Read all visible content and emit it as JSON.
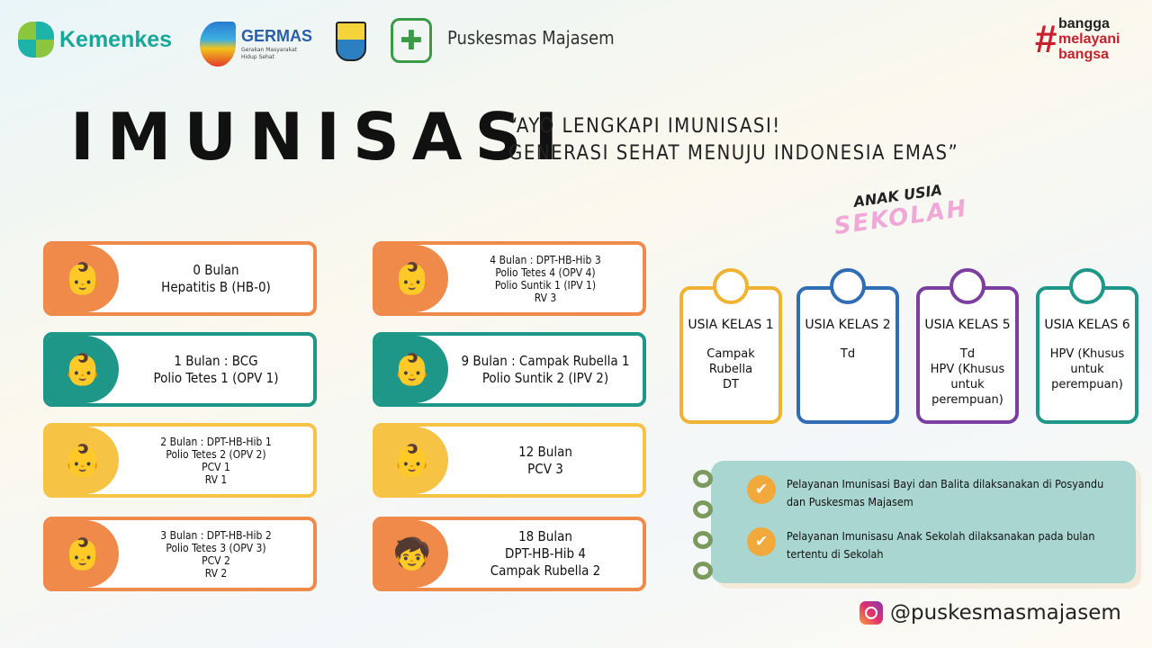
{
  "header": {
    "logos": [
      "Kemenkes",
      "GERMAS",
      "Gerakan Masyarakat Hidup Sehat"
    ],
    "puskesmas": "Puskesmas Majasem",
    "tagline": [
      "bangga",
      "melayani",
      "bangsa"
    ]
  },
  "title": "IMUNISASI",
  "slogan_line1": "“AYO LENGKAPI IMUNISASI!",
  "slogan_line2": "GENERASI SEHAT MENUJU INDONESIA EMAS”",
  "school_heading": [
    "ANAK USIA",
    "SEKOLAH"
  ],
  "baby_cards": [
    {
      "lines": [
        "0 Bulan",
        "Hepatitis B (HB-0)"
      ],
      "color": "#F08A4B"
    },
    {
      "lines": [
        "1 Bulan : BCG",
        "Polio Tetes 1 (OPV 1)"
      ],
      "color": "#1E9688"
    },
    {
      "lines": [
        "2 Bulan : DPT-HB-Hib 1",
        "Polio Tetes 2 (OPV 2)",
        "PCV 1",
        "RV 1"
      ],
      "color": "#F6C344"
    },
    {
      "lines": [
        "3 Bulan : DPT-HB-Hib 2",
        "Polio Tetes 3 (OPV 3)",
        "PCV 2",
        "RV 2"
      ],
      "color": "#F08A4B"
    },
    {
      "lines": [
        "4 Bulan : DPT-HB-Hib 3",
        "Polio Tetes 4 (OPV 4)",
        "Polio Suntik 1 (IPV 1)",
        "RV 3"
      ],
      "color": "#F08A4B"
    },
    {
      "lines": [
        "9 Bulan : Campak Rubella 1",
        "Polio Suntik 2 (IPV 2)"
      ],
      "color": "#1E9688"
    },
    {
      "lines": [
        "12 Bulan",
        "PCV 3"
      ],
      "color": "#F6C344"
    },
    {
      "lines": [
        "18 Bulan",
        "DPT-HB-Hib 4",
        "Campak Rubella 2"
      ],
      "color": "#F08A4B"
    }
  ],
  "school_cards": [
    {
      "title": "USIA KELAS 1",
      "lines": [
        "Campak",
        "Rubella",
        "DT"
      ],
      "color": "#F0B232"
    },
    {
      "title": "USIA KELAS 2",
      "lines": [
        "Td"
      ],
      "color": "#2F6DB5"
    },
    {
      "title": "USIA KELAS 5",
      "lines": [
        "Td",
        "HPV (Khusus",
        "untuk",
        "perempuan)"
      ],
      "color": "#7B3FA0"
    },
    {
      "title": "USIA KELAS 6",
      "lines": [
        "HPV (Khusus",
        "untuk",
        "perempuan)"
      ],
      "color": "#1E9688"
    }
  ],
  "notes": [
    "Pelayanan Imunisasi Bayi dan Balita dilaksanakan di Posyandu dan Puskesmas Majasem",
    "Pelayanan Imunisasu Anak Sekolah dilaksanakan pada bulan tertentu di Sekolah"
  ],
  "instagram": "@puskesmasmajasem"
}
